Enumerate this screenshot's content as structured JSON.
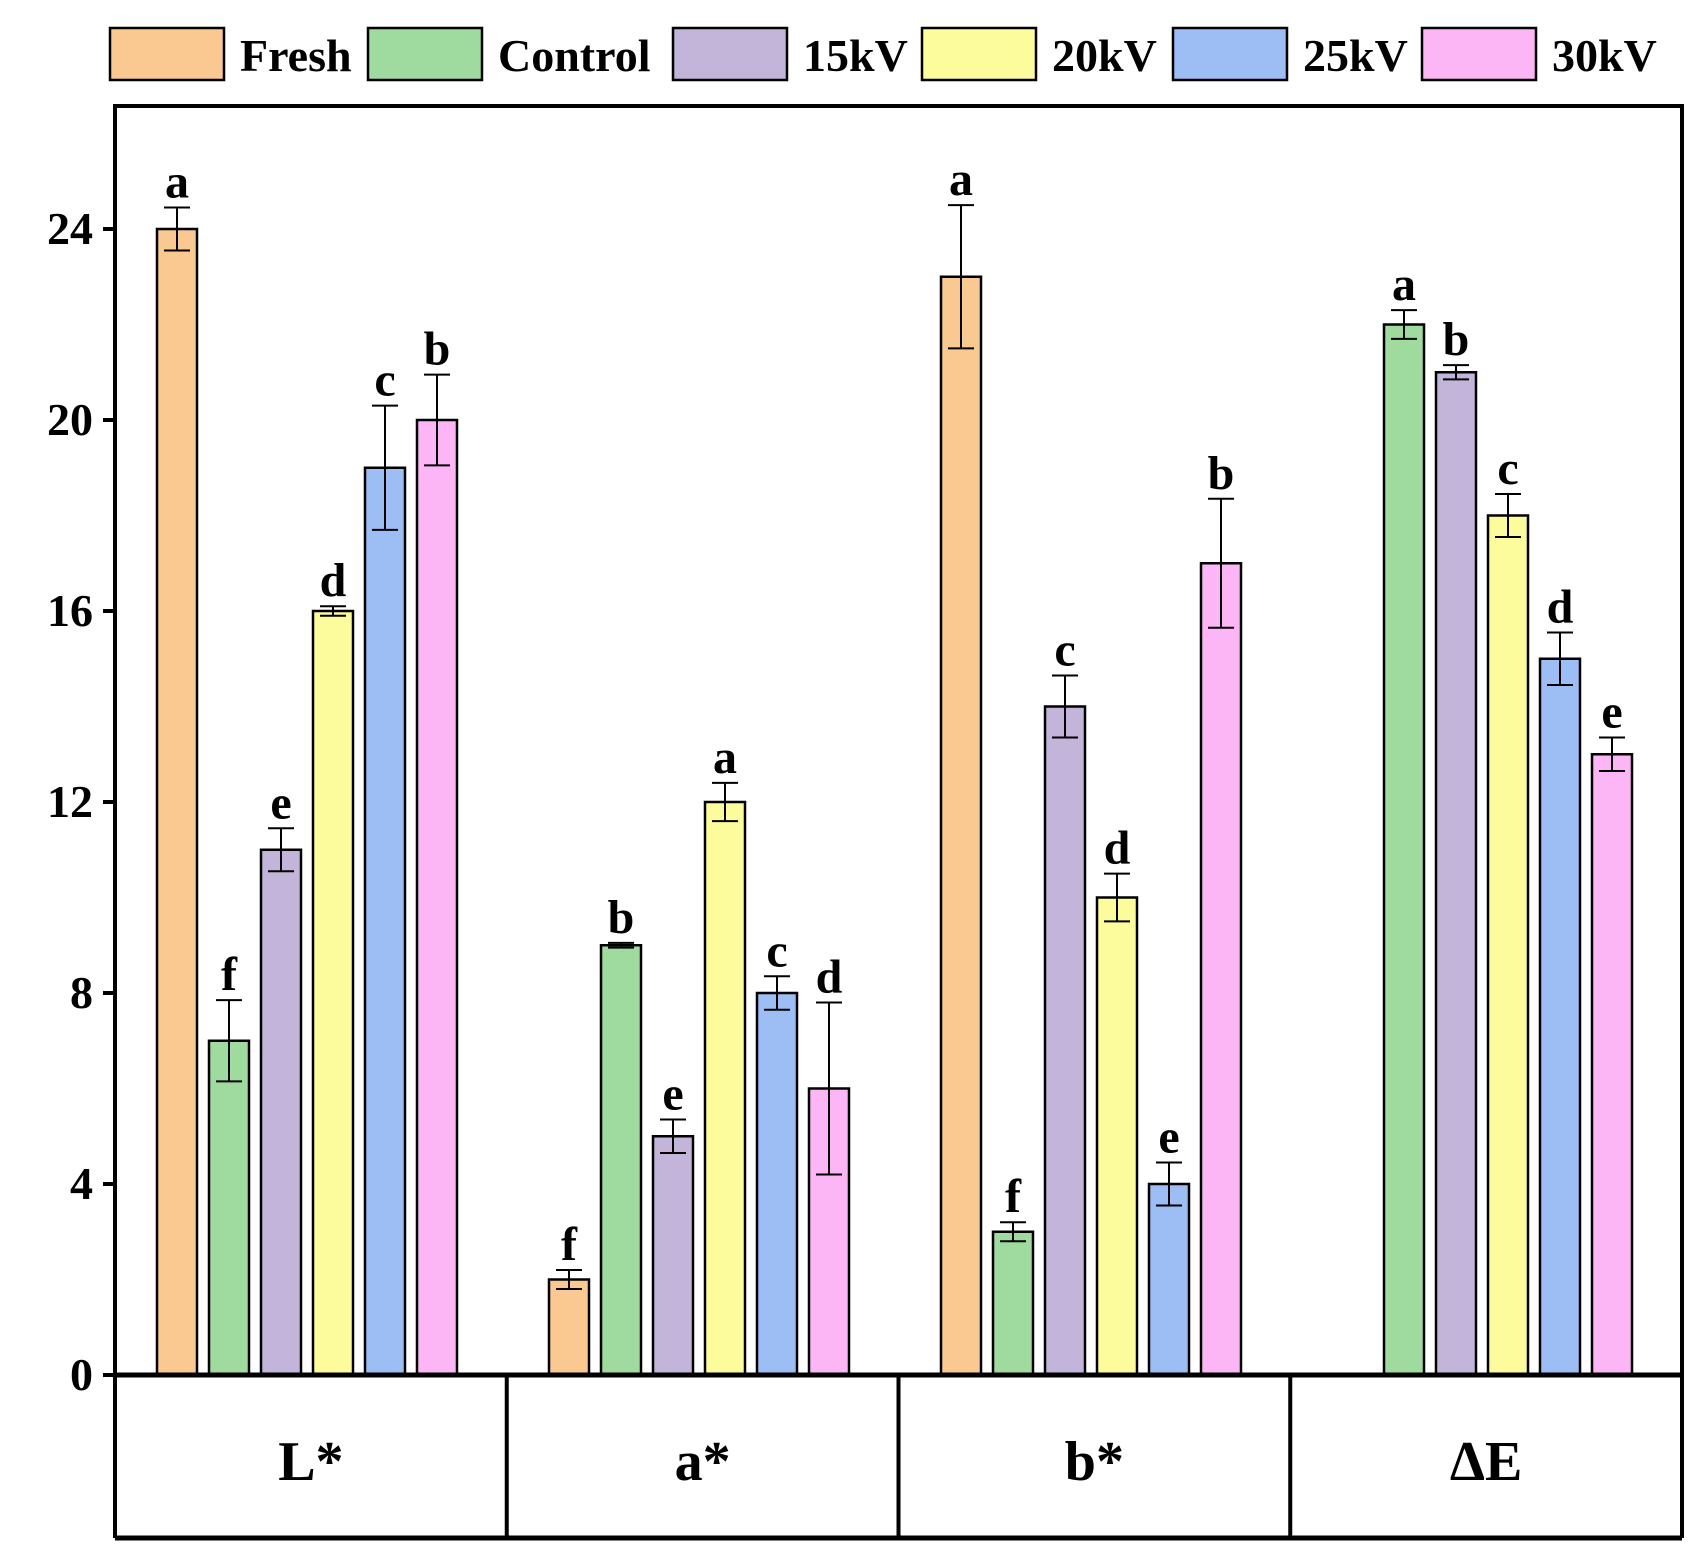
{
  "chart_data": {
    "type": "bar",
    "title": "",
    "xlabel": "",
    "ylabel": "",
    "ylim": [
      0,
      26.5
    ],
    "yticks": [
      0,
      4,
      8,
      12,
      16,
      20,
      24
    ],
    "grid": false,
    "legend_position": "top",
    "categories": [
      "L*",
      "a*",
      "b*",
      "ΔE"
    ],
    "series": [
      {
        "name": "Fresh",
        "color": "#FAC992",
        "values": [
          24,
          2,
          23,
          null
        ],
        "errors": [
          0.45,
          0.2,
          1.5,
          null
        ],
        "letters": [
          "a",
          "f",
          "a",
          null
        ]
      },
      {
        "name": "Control",
        "color": "#9FDB9F",
        "values": [
          7,
          9,
          3,
          22
        ],
        "errors": [
          0.85,
          0.05,
          0.2,
          0.3
        ],
        "letters": [
          "f",
          "b",
          "f",
          "a"
        ]
      },
      {
        "name": "15kV",
        "color": "#C3B4D9",
        "values": [
          11,
          5,
          14,
          21
        ],
        "errors": [
          0.45,
          0.35,
          0.65,
          0.15
        ],
        "letters": [
          "e",
          "e",
          "c",
          "b"
        ]
      },
      {
        "name": "20kV",
        "color": "#FCFC9D",
        "values": [
          16,
          12,
          10,
          18
        ],
        "errors": [
          0.1,
          0.4,
          0.5,
          0.45
        ],
        "letters": [
          "d",
          "a",
          "d",
          "c"
        ]
      },
      {
        "name": "25kV",
        "color": "#9DBDF5",
        "values": [
          19,
          8,
          4,
          15
        ],
        "errors": [
          1.3,
          0.35,
          0.45,
          0.55
        ],
        "letters": [
          "c",
          "c",
          "e",
          "d"
        ]
      },
      {
        "name": "30kV",
        "color": "#FCB6F5",
        "values": [
          20,
          6,
          17,
          13
        ],
        "errors": [
          0.95,
          1.8,
          1.35,
          0.35
        ],
        "letters": [
          "b",
          "d",
          "b",
          "e"
        ]
      }
    ]
  }
}
